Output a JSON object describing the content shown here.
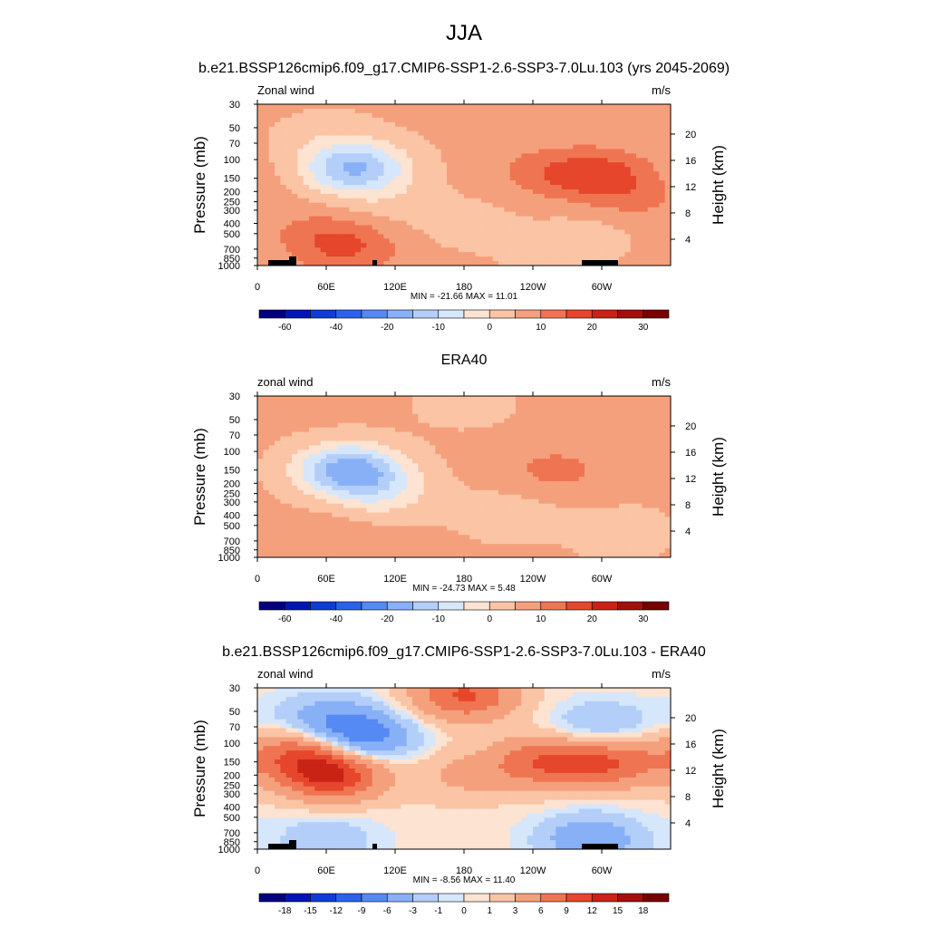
{
  "main_title": "JJA",
  "chart_data": [
    {
      "type": "heatmap",
      "title": "b.e21.BSSP126cmip6.f09_g17.CMIP6-SSP1-2.6-SSP3-7.0Lu.103 (yrs 2045-2069)",
      "left_label": "Zonal wind",
      "units": "m/s",
      "ylabel": "Pressure (mb)",
      "y2label": "Height (km)",
      "x_ticks": [
        "0",
        "60E",
        "120E",
        "180",
        "120W",
        "60W"
      ],
      "y_ticks": [
        "30",
        "50",
        "70",
        "100",
        "150",
        "200",
        "250",
        "300",
        "400",
        "500",
        "700",
        "850",
        "1000"
      ],
      "y2_ticks": [
        "20",
        "16",
        "12",
        "8",
        "4"
      ],
      "stats": "MIN = -21.66  MAX =  11.01",
      "colorbar_labels": [
        "-60",
        "-40",
        "-20",
        "-10",
        "0",
        "10",
        "20",
        "30"
      ],
      "min": -21.66,
      "max": 11.01,
      "orography": true,
      "features": [
        {
          "lon": 85,
          "p": 120,
          "value": -21.66
        },
        {
          "lon": 180,
          "p": 400,
          "value": -3
        },
        {
          "lon": 110,
          "p": 250,
          "value": -3
        },
        {
          "lon": 60,
          "p": 60,
          "value": -3
        },
        {
          "lon": 55,
          "p": 500,
          "value": 5
        },
        {
          "lon": 80,
          "p": 700,
          "value": 8
        },
        {
          "lon": 300,
          "p": 140,
          "value": 11.01
        },
        {
          "lon": 250,
          "p": 130,
          "value": 6
        },
        {
          "lon": 330,
          "p": 250,
          "value": 4
        },
        {
          "lon": 290,
          "p": 500,
          "value": -3
        },
        {
          "lon": 250,
          "p": 800,
          "value": -2
        }
      ]
    },
    {
      "type": "heatmap",
      "title": "ERA40",
      "left_label": "zonal wind",
      "units": "m/s",
      "ylabel": "Pressure (mb)",
      "y2label": "Height (km)",
      "x_ticks": [
        "0",
        "60E",
        "120E",
        "180",
        "120W",
        "60W"
      ],
      "y_ticks": [
        "30",
        "50",
        "70",
        "100",
        "150",
        "200",
        "250",
        "300",
        "400",
        "500",
        "700",
        "850",
        "1000"
      ],
      "y2_ticks": [
        "20",
        "16",
        "12",
        "8",
        "4"
      ],
      "stats": "MIN = -24.73  MAX =   5.48",
      "colorbar_labels": [
        "-60",
        "-40",
        "-20",
        "-10",
        "0",
        "10",
        "20",
        "30"
      ],
      "min": -24.73,
      "max": 5.48,
      "orography": false,
      "features": [
        {
          "lon": 80,
          "p": 150,
          "value": -24.73
        },
        {
          "lon": 110,
          "p": 250,
          "value": -8
        },
        {
          "lon": 220,
          "p": 400,
          "value": -4
        },
        {
          "lon": 320,
          "p": 600,
          "value": -4
        },
        {
          "lon": 260,
          "p": 150,
          "value": 5.48
        },
        {
          "lon": 60,
          "p": 700,
          "value": 4
        },
        {
          "lon": 180,
          "p": 35,
          "value": -3
        }
      ]
    },
    {
      "type": "heatmap",
      "title": "b.e21.BSSP126cmip6.f09_g17.CMIP6-SSP1-2.6-SSP3-7.0Lu.103 - ERA40",
      "left_label": "zonal wind",
      "units": "m/s",
      "ylabel": "Pressure (mb)",
      "y2label": "Height (km)",
      "x_ticks": [
        "0",
        "60E",
        "120E",
        "180",
        "120W",
        "60W"
      ],
      "y_ticks": [
        "30",
        "50",
        "70",
        "100",
        "150",
        "200",
        "250",
        "300",
        "400",
        "500",
        "700",
        "850",
        "1000"
      ],
      "y2_ticks": [
        "20",
        "16",
        "12",
        "8",
        "4"
      ],
      "stats": "MIN = -8.56  MAX =  11.40",
      "colorbar_labels": [
        "-18",
        "-15",
        "-12",
        "-9",
        "-6",
        "-3",
        "-1",
        "0",
        "1",
        "3",
        "6",
        "9",
        "12",
        "15",
        "18"
      ],
      "min": -8.56,
      "max": 11.4,
      "orography": true,
      "features": [
        {
          "lon": 90,
          "p": 90,
          "value": -8.56
        },
        {
          "lon": 60,
          "p": 60,
          "value": -5
        },
        {
          "lon": 300,
          "p": 70,
          "value": -4
        },
        {
          "lon": 65,
          "p": 200,
          "value": 11.4
        },
        {
          "lon": 40,
          "p": 120,
          "value": 8
        },
        {
          "lon": 250,
          "p": 150,
          "value": 8
        },
        {
          "lon": 310,
          "p": 150,
          "value": 8
        },
        {
          "lon": 180,
          "p": 200,
          "value": 3
        },
        {
          "lon": 180,
          "p": 35,
          "value": 9
        },
        {
          "lon": 290,
          "p": 800,
          "value": -6
        },
        {
          "lon": 60,
          "p": 800,
          "value": -3
        }
      ]
    }
  ]
}
